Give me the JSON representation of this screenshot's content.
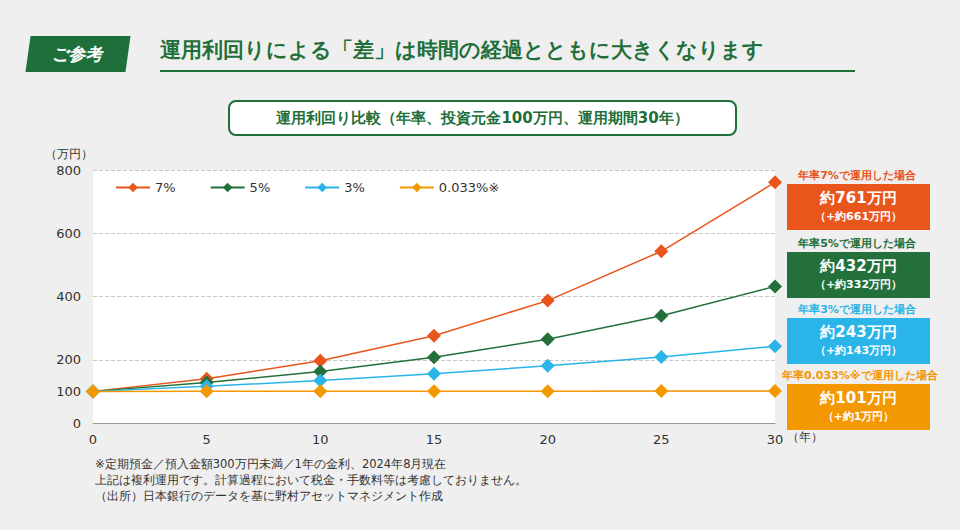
{
  "chart_data": {
    "type": "line",
    "badge": "ご参考",
    "title": "運用利回りによる「差」は時間の経過とともに大きくなります",
    "subtitle": "運用利回り比較（年率、投資元金100万円、運用期間30年）",
    "x_label": "（年）",
    "y_label": "（万円）",
    "x": [
      0,
      5,
      10,
      15,
      20,
      25,
      30
    ],
    "series": [
      {
        "name": "7%",
        "color": "#e8561b",
        "values": [
          100,
          140,
          197,
          276,
          387,
          543,
          761
        ]
      },
      {
        "name": "5%",
        "color": "#23703a",
        "values": [
          100,
          128,
          163,
          208,
          265,
          339,
          432
        ]
      },
      {
        "name": "3%",
        "color": "#2ab4e8",
        "values": [
          100,
          116,
          134,
          156,
          181,
          209,
          243
        ]
      },
      {
        "name": "0.033%※",
        "color": "#f39800",
        "values": [
          100,
          100.2,
          100.3,
          100.5,
          100.7,
          100.8,
          101
        ]
      }
    ],
    "xlim": [
      0,
      30
    ],
    "xticks": [
      0,
      5,
      10,
      15,
      20,
      25,
      30
    ],
    "ylim": [
      0,
      800
    ],
    "yticks": [
      0,
      100,
      200,
      400,
      600,
      800
    ],
    "grid": true,
    "legend": "upper left",
    "marker": "diamond",
    "annotations": [
      {
        "header": "年率7%で運用した場合",
        "text": "約761万円",
        "subtext": "（+約661万円）"
      },
      {
        "header": "年率5%で運用した場合",
        "text": "約432万円",
        "subtext": "（+約332万円）"
      },
      {
        "header": "年率3%で運用した場合",
        "text": "約243万円",
        "subtext": "（+約143万円）"
      },
      {
        "header": "年率0.033%※で運用した場合",
        "text": "約101万円",
        "subtext": "（+約1万円）"
      }
    ],
    "notes": [
      "※定期預金／預入金額300万円未満／1年の金利、2024年8月現在",
      "上記は複利運用です。計算過程において税金・手数料等は考慮しておりません。",
      "（出所）日本銀行のデータを基に野村アセットマネジメント作成"
    ]
  }
}
